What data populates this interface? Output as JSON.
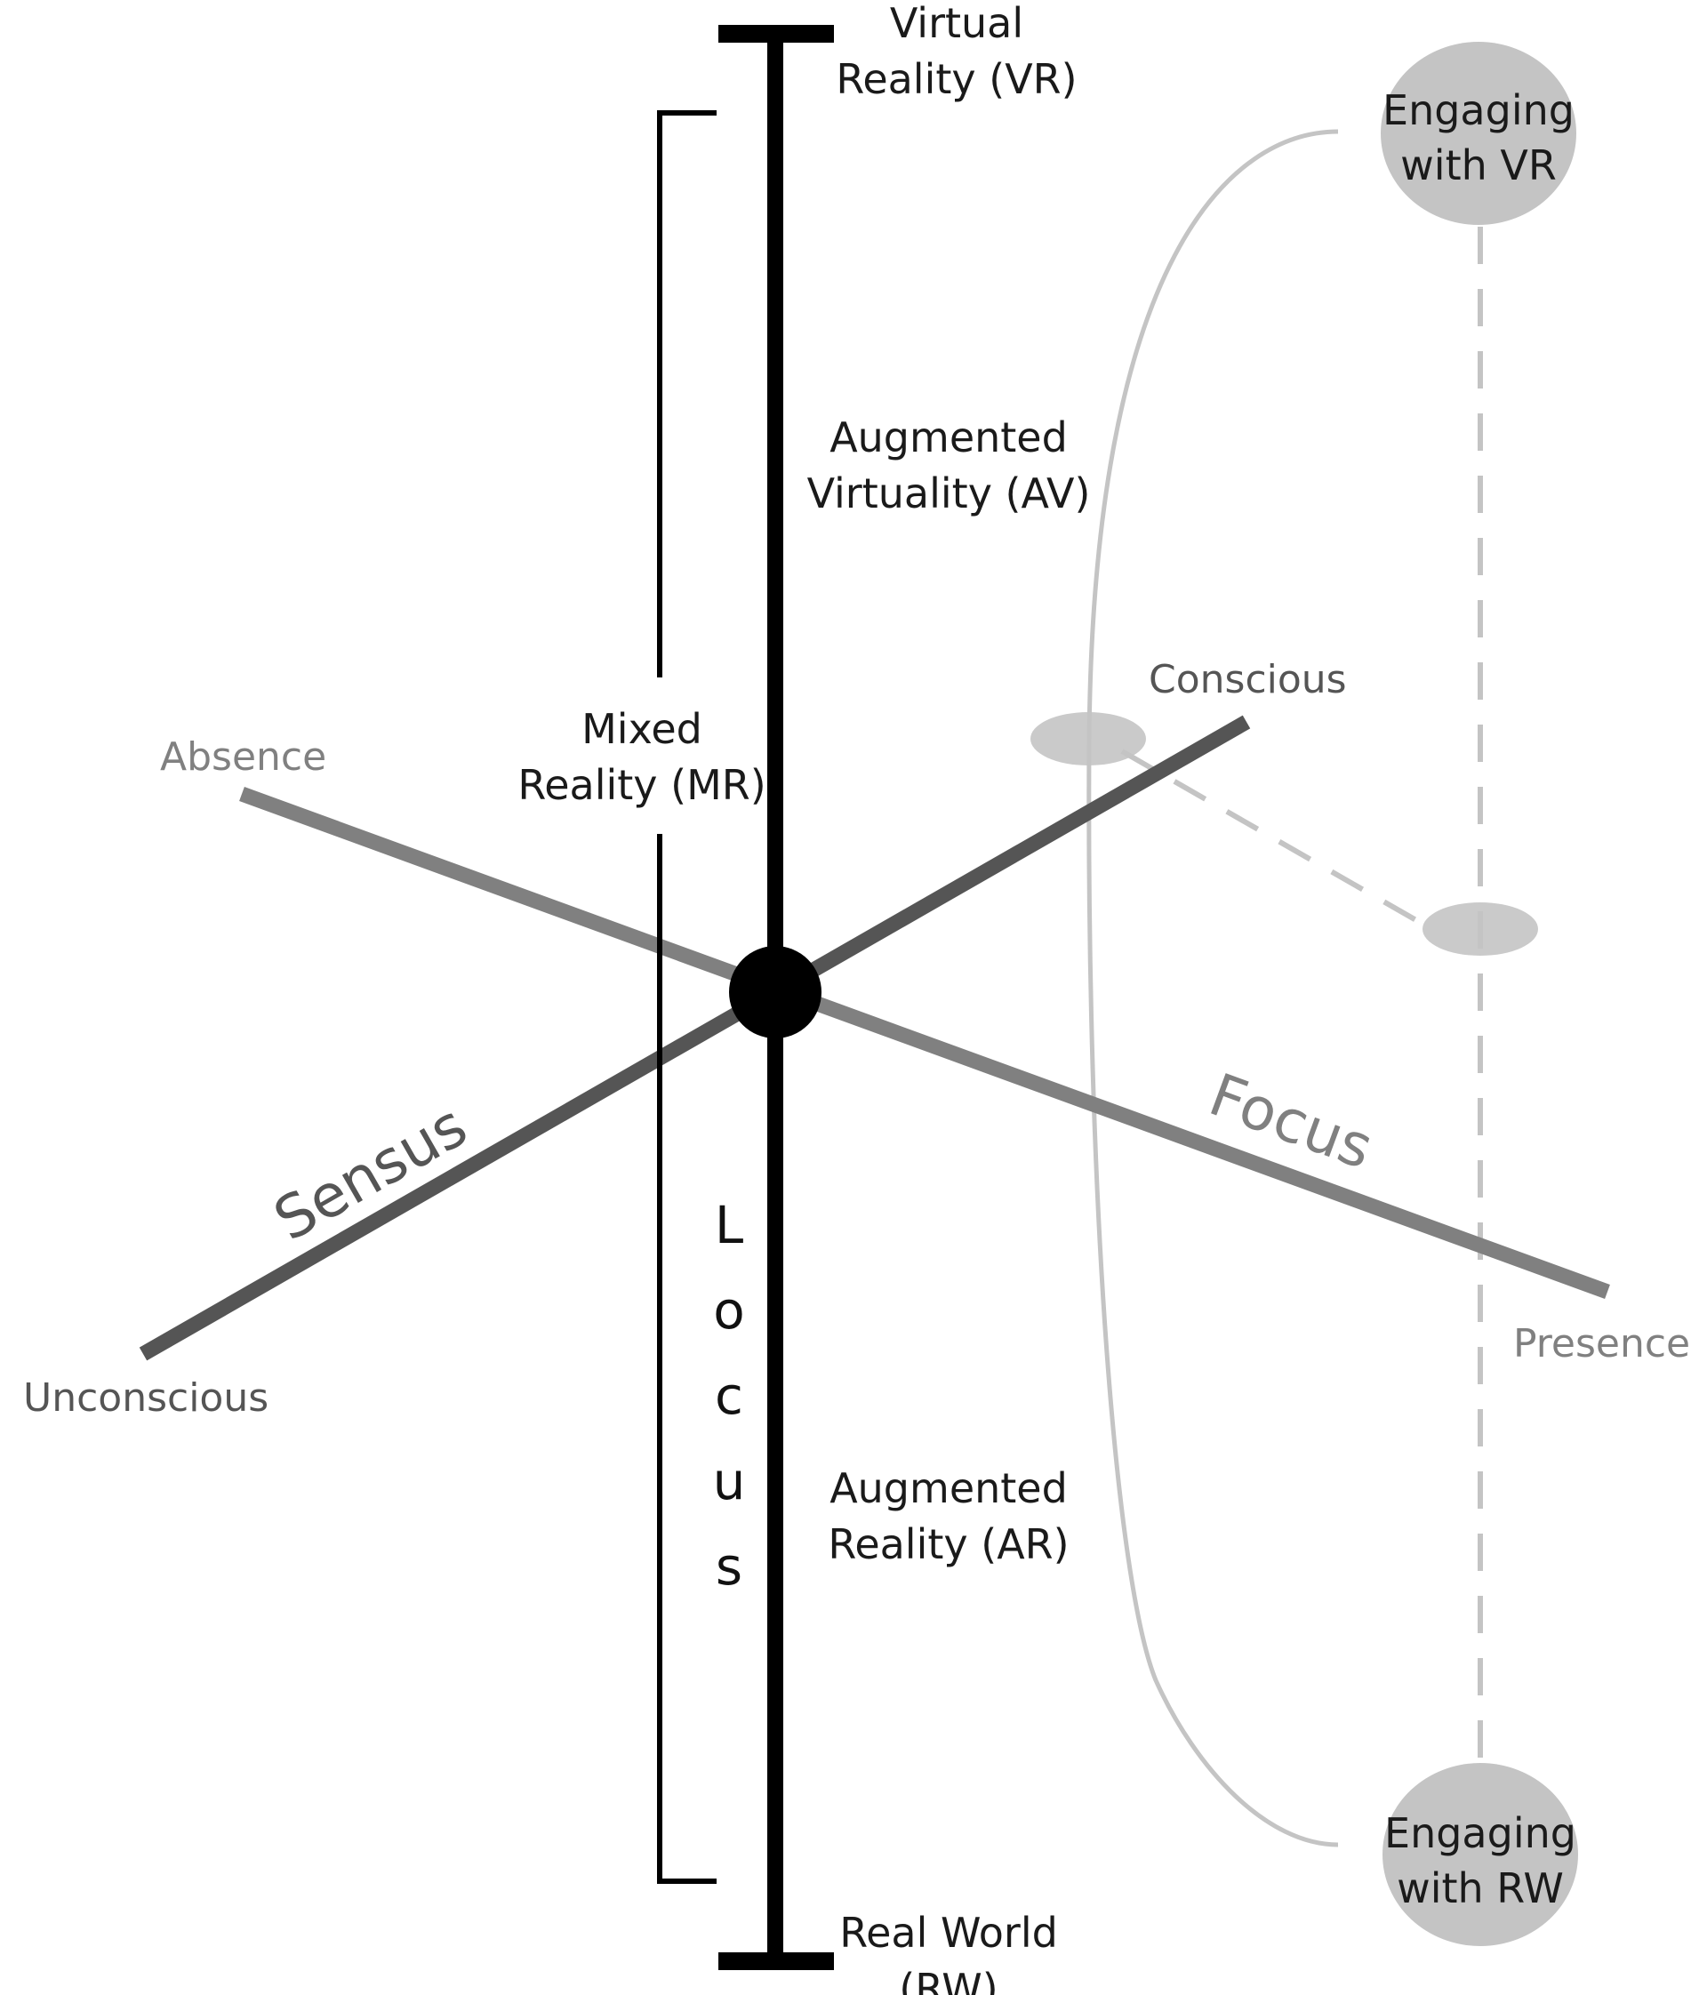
{
  "locus_axis": {
    "title_letters": [
      "L",
      "o",
      "c",
      "u",
      "s"
    ],
    "top_label": [
      "Virtual",
      "Reality (VR)"
    ],
    "av_label": [
      "Augmented",
      "Virtuality (AV)"
    ],
    "ar_label": [
      "Augmented",
      "Reality (AR)"
    ],
    "bottom_label": [
      "Real World",
      "(RW)"
    ]
  },
  "mixed_reality": {
    "label": [
      "Mixed",
      "Reality (MR)"
    ]
  },
  "sensus_axis": {
    "title": "Sensus",
    "high_end": "Conscious",
    "low_end": "Unconscious"
  },
  "focus_axis": {
    "title": "Focus",
    "high_end": "Presence",
    "low_end": "Absence"
  },
  "engagement": {
    "vr": [
      "Engaging",
      "with VR"
    ],
    "rw": [
      "Engaging",
      "with RW"
    ]
  },
  "colors": {
    "locus": "#000000",
    "sensus": "#555555",
    "focus": "#808080",
    "engagement": "#c4c4c4"
  }
}
